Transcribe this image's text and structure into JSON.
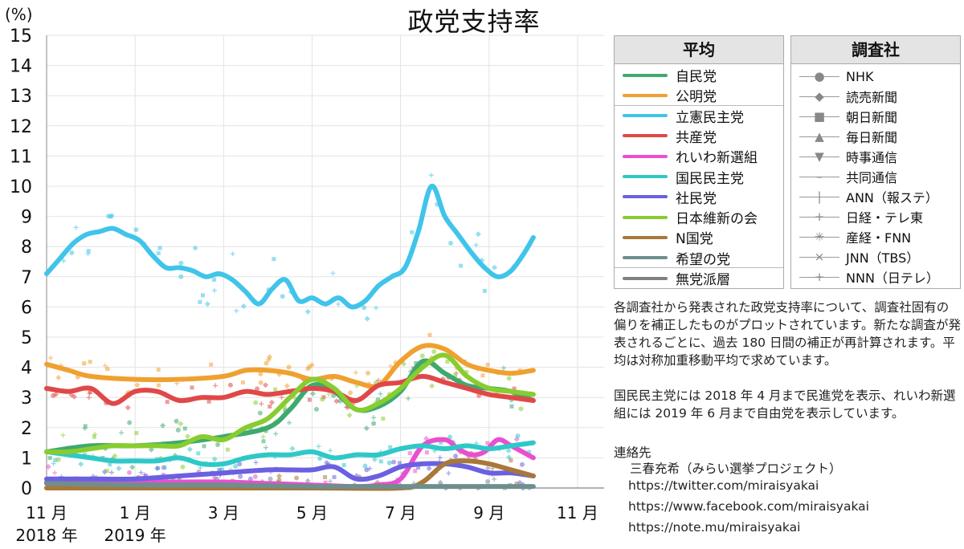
{
  "chart_data": {
    "type": "line",
    "title": "政党支持率",
    "ylabel": "(%)",
    "ylim": [
      0,
      15
    ],
    "y_ticks": [
      "0",
      "1",
      "2",
      "3",
      "4",
      "5",
      "6",
      "7",
      "8",
      "9",
      "10",
      "11",
      "12",
      "13",
      "14",
      "15"
    ],
    "x_ticks": [
      {
        "month": 0,
        "label": "11 月",
        "year_label": "2018 年"
      },
      {
        "month": 2,
        "label": "1 月",
        "year_label": "2019 年"
      },
      {
        "month": 4,
        "label": "3 月",
        "year_label": ""
      },
      {
        "month": 6,
        "label": "5 月",
        "year_label": ""
      },
      {
        "month": 8,
        "label": "7 月",
        "year_label": ""
      },
      {
        "month": 10,
        "label": "9 月",
        "year_label": ""
      },
      {
        "month": 12,
        "label": "11 月",
        "year_label": ""
      }
    ],
    "xlim_months": [
      0,
      12.6
    ],
    "grid": true,
    "legend_placement": "right",
    "series": [
      {
        "name": "自民党",
        "color": "#3daa6e",
        "x": [
          0,
          1,
          2,
          3,
          4,
          5,
          5.5,
          6,
          6.5,
          7,
          7.5,
          8,
          8.5,
          9,
          9.5,
          10,
          10.5,
          11
        ],
        "y": [
          1.2,
          1.4,
          1.4,
          1.5,
          1.7,
          2.0,
          2.6,
          3.4,
          3.2,
          2.6,
          2.7,
          3.2,
          4.2,
          3.8,
          3.4,
          3.3,
          3.2,
          2.9
        ]
      },
      {
        "name": "公明党",
        "color": "#f0a030",
        "x": [
          0,
          0.5,
          1,
          2,
          3,
          4,
          4.5,
          5,
          5.5,
          6,
          6.5,
          7,
          7.5,
          8,
          8.5,
          9,
          9.5,
          10,
          10.5,
          11
        ],
        "y": [
          4.1,
          3.9,
          3.7,
          3.6,
          3.6,
          3.7,
          3.9,
          3.9,
          3.8,
          3.6,
          3.7,
          3.5,
          3.4,
          4.2,
          4.7,
          4.6,
          4.1,
          3.9,
          3.8,
          3.9
        ]
      },
      {
        "name": "立憲民主党",
        "color": "#40c4ea",
        "x": [
          0,
          0.3,
          0.6,
          0.9,
          1.2,
          1.5,
          1.8,
          2.1,
          2.4,
          2.7,
          3.0,
          3.3,
          3.6,
          3.9,
          4.2,
          4.5,
          4.8,
          5.1,
          5.4,
          5.7,
          6.0,
          6.3,
          6.6,
          6.9,
          7.2,
          7.5,
          7.8,
          8.1,
          8.4,
          8.7,
          9.0,
          9.3,
          9.6,
          9.9,
          10.2,
          10.5,
          10.8,
          11.0
        ],
        "y": [
          7.1,
          7.6,
          8.1,
          8.4,
          8.5,
          8.6,
          8.4,
          8.2,
          7.7,
          7.3,
          7.3,
          7.2,
          7.0,
          7.1,
          6.9,
          6.5,
          6.1,
          6.6,
          6.9,
          6.2,
          6.3,
          6.1,
          6.3,
          6.0,
          6.2,
          6.7,
          7.0,
          7.3,
          8.5,
          10.0,
          9.0,
          8.4,
          7.8,
          7.3,
          7.0,
          7.2,
          7.8,
          8.3
        ]
      },
      {
        "name": "共産党",
        "color": "#e04848",
        "x": [
          0,
          0.5,
          1,
          1.5,
          2,
          2.5,
          3,
          3.5,
          4,
          4.5,
          5,
          5.5,
          6,
          6.5,
          7,
          7.5,
          8,
          8.5,
          9,
          9.5,
          10,
          10.5,
          11
        ],
        "y": [
          3.3,
          3.2,
          3.3,
          2.8,
          3.2,
          3.2,
          2.9,
          3.0,
          3.0,
          3.2,
          3.1,
          3.2,
          3.3,
          3.2,
          2.9,
          3.4,
          3.5,
          3.7,
          3.5,
          3.3,
          3.1,
          3.0,
          2.9
        ]
      },
      {
        "name": "れいわ新選組",
        "color": "#e94fcf",
        "x": [
          0,
          1,
          2,
          3,
          4,
          5,
          6,
          7,
          7.5,
          8,
          8.5,
          9,
          9.3,
          9.6,
          9.9,
          10.2,
          10.5,
          11
        ],
        "y": [
          0.2,
          0.2,
          0.2,
          0.2,
          0.2,
          0.15,
          0.1,
          0.05,
          0.1,
          0.3,
          1.4,
          1.6,
          1.3,
          1.1,
          1.2,
          1.6,
          1.4,
          1.0
        ]
      },
      {
        "name": "国民民主党",
        "color": "#2fc8c8",
        "x": [
          0,
          0.5,
          1,
          1.5,
          2,
          2.5,
          3,
          3.5,
          4,
          4.5,
          5,
          5.5,
          6,
          6.5,
          7,
          7.5,
          8,
          8.5,
          9,
          9.5,
          10,
          10.5,
          11
        ],
        "y": [
          1.2,
          1.1,
          1.0,
          0.9,
          0.9,
          0.9,
          1.0,
          0.8,
          0.8,
          1.0,
          1.1,
          1.1,
          1.2,
          1.0,
          1.1,
          1.1,
          1.3,
          1.4,
          1.3,
          1.4,
          1.3,
          1.4,
          1.5
        ]
      },
      {
        "name": "社民党",
        "color": "#6a60e0",
        "x": [
          0,
          1,
          2,
          3,
          4,
          5,
          5.5,
          6,
          6.5,
          7,
          7.5,
          8,
          8.5,
          9,
          9.5,
          10,
          10.5,
          11
        ],
        "y": [
          0.3,
          0.3,
          0.3,
          0.4,
          0.5,
          0.6,
          0.6,
          0.6,
          0.7,
          0.3,
          0.4,
          0.7,
          0.8,
          0.8,
          0.7,
          0.5,
          0.5,
          0.4
        ]
      },
      {
        "name": "日本維新の会",
        "color": "#88cc30",
        "x": [
          0,
          0.5,
          1,
          1.5,
          2,
          2.5,
          3,
          3.5,
          4,
          4.5,
          5,
          5.5,
          6,
          6.5,
          7,
          7.5,
          8,
          8.5,
          9,
          9.5,
          10,
          10.5,
          11
        ],
        "y": [
          1.2,
          1.2,
          1.3,
          1.4,
          1.4,
          1.4,
          1.4,
          1.7,
          1.6,
          2.0,
          2.3,
          3.0,
          3.6,
          3.3,
          2.6,
          2.8,
          3.3,
          4.0,
          4.4,
          3.7,
          3.3,
          3.2,
          3.1
        ]
      },
      {
        "name": "N国党",
        "color": "#a8783a",
        "x": [
          0,
          2,
          4,
          6,
          8,
          8.5,
          9,
          9.5,
          10,
          10.5,
          11
        ],
        "y": [
          0,
          0,
          0,
          0,
          0,
          0.2,
          0.8,
          0.9,
          0.8,
          0.6,
          0.4
        ]
      },
      {
        "name": "希望の党",
        "color": "#6f8e8e",
        "x": [
          0,
          2,
          4,
          6,
          8,
          10,
          11
        ],
        "y": [
          0.15,
          0.1,
          0.1,
          0.05,
          0.05,
          0.05,
          0.05
        ]
      },
      {
        "name": "無党派層",
        "color": "#808080",
        "x": [],
        "y": []
      }
    ]
  },
  "legend_avg": {
    "header": "平均",
    "items": [
      {
        "label": "自民党",
        "color": "#3daa6e"
      },
      {
        "label": "公明党",
        "color": "#f0a030"
      },
      {
        "label": "立憲民主党",
        "color": "#40c4ea"
      },
      {
        "label": "共産党",
        "color": "#e04848"
      },
      {
        "label": "れいわ新選組",
        "color": "#e94fcf"
      },
      {
        "label": "国民民主党",
        "color": "#2fc8c8"
      },
      {
        "label": "社民党",
        "color": "#6a60e0"
      },
      {
        "label": "日本維新の会",
        "color": "#88cc30"
      },
      {
        "label": "N国党",
        "color": "#a8783a"
      },
      {
        "label": "希望の党",
        "color": "#6f8e8e"
      },
      {
        "label": "無党派層",
        "color": "#808080"
      }
    ]
  },
  "legend_pollsters": {
    "header": "調査社",
    "items": [
      {
        "label": "NHK",
        "marker": "●"
      },
      {
        "label": "読売新聞",
        "marker": "◆"
      },
      {
        "label": "朝日新聞",
        "marker": "■"
      },
      {
        "label": "毎日新聞",
        "marker": "▲"
      },
      {
        "label": "時事通信",
        "marker": "▼"
      },
      {
        "label": "共同通信",
        "marker": "–"
      },
      {
        "label": "ANN（報ステ）",
        "marker": "|"
      },
      {
        "label": "日経・テレ東",
        "marker": "+"
      },
      {
        "label": "産経・FNN",
        "marker": "✳"
      },
      {
        "label": "JNN（TBS）",
        "marker": "×"
      },
      {
        "label": "NNN（日テレ）",
        "marker": "+"
      }
    ]
  },
  "notes": {
    "paragraph1": "各調査社から発表された政党支持率について、調査社固有の偏りを補正したものがプロットされています。新たな調査が発表されるごとに、過去 180 日間の補正が再計算されます。平均は対称加重移動平均で求めています。",
    "paragraph2": "国民民主党には 2018 年 4 月まで民進党を表示、れいわ新選組には 2019 年 6 月まで自由党を表示しています。"
  },
  "contact": {
    "heading": "連絡先",
    "name": "三春充希（みらい選挙プロジェクト）",
    "links": [
      "https://twitter.com/miraisyakai",
      "https://www.facebook.com/miraisyakai",
      "https://note.mu/miraisyakai"
    ]
  }
}
